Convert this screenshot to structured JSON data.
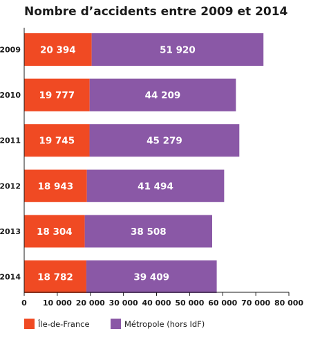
{
  "chart_data": {
    "type": "bar",
    "orientation": "horizontal",
    "stacked": true,
    "title": "Nombre d’accidents entre 2009 et 2014",
    "categories": [
      "2009",
      "2010",
      "2011",
      "2012",
      "2013",
      "2014"
    ],
    "series": [
      {
        "name": "Île-de-France",
        "color": "#f04a23",
        "values": [
          20394,
          19777,
          19745,
          18943,
          18304,
          18782
        ],
        "labels": [
          "20 394",
          "19 777",
          "19 745",
          "18 943",
          "18 304",
          "18 782"
        ]
      },
      {
        "name": "Métropole (hors IdF)",
        "color": "#8a58a6",
        "values": [
          51920,
          44209,
          45279,
          41494,
          38508,
          39409
        ],
        "labels": [
          "51 920",
          "44 209",
          "45 279",
          "41 494",
          "38 508",
          "39 409"
        ]
      }
    ],
    "xlim": [
      0,
      80000
    ],
    "xticks": [
      0,
      10000,
      20000,
      30000,
      40000,
      50000,
      60000,
      70000,
      80000
    ],
    "xtick_labels": [
      "0",
      "10 000",
      "20 000",
      "30 000",
      "40 000",
      "50 000",
      "60 000",
      "70 000",
      "80 000"
    ],
    "grid": false,
    "legend_position": "bottom-left"
  }
}
